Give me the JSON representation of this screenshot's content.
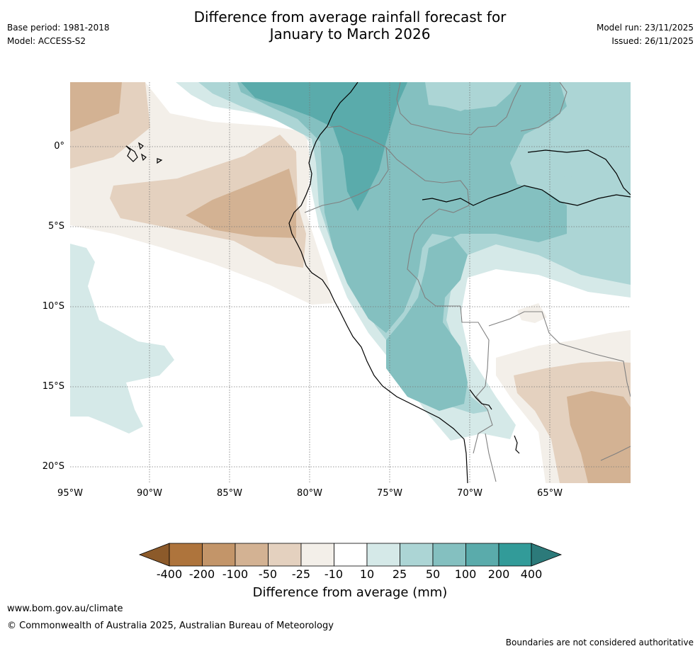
{
  "header": {
    "title_line1": "Difference from average rainfall forecast for",
    "title_line2": "January to March 2026",
    "base_period": "Base period: 1981-2018",
    "model": "Model: ACCESS-S2",
    "model_run": "Model run: 23/11/2025",
    "issued": "Issued: 26/11/2025"
  },
  "map": {
    "lat_labels": [
      "0°",
      "5°S",
      "10°S",
      "15°S",
      "20°S"
    ],
    "lon_labels": [
      "95°W",
      "90°W",
      "85°W",
      "80°W",
      "75°W",
      "70°W",
      "65°W"
    ]
  },
  "colorbar": {
    "title": "Difference from average (mm)",
    "tick_labels": [
      "-400",
      "-200",
      "-100",
      "-50",
      "-25",
      "-10",
      "10",
      "25",
      "50",
      "100",
      "200",
      "400"
    ],
    "colors": [
      "#8c5a2a",
      "#ae743c",
      "#c39569",
      "#d3b293",
      "#e4d1bf",
      "#f3efe9",
      "#ffffff",
      "#d5e9e8",
      "#acd5d5",
      "#84c0c0",
      "#5aabab",
      "#329b99",
      "#2c7a7a"
    ]
  },
  "footer": {
    "url": "www.bom.gov.au/climate",
    "copyright": "© Commonwealth of Australia 2025, Australian Bureau of Meteorology",
    "disclaimer": "Boundaries are not considered authoritative"
  }
}
